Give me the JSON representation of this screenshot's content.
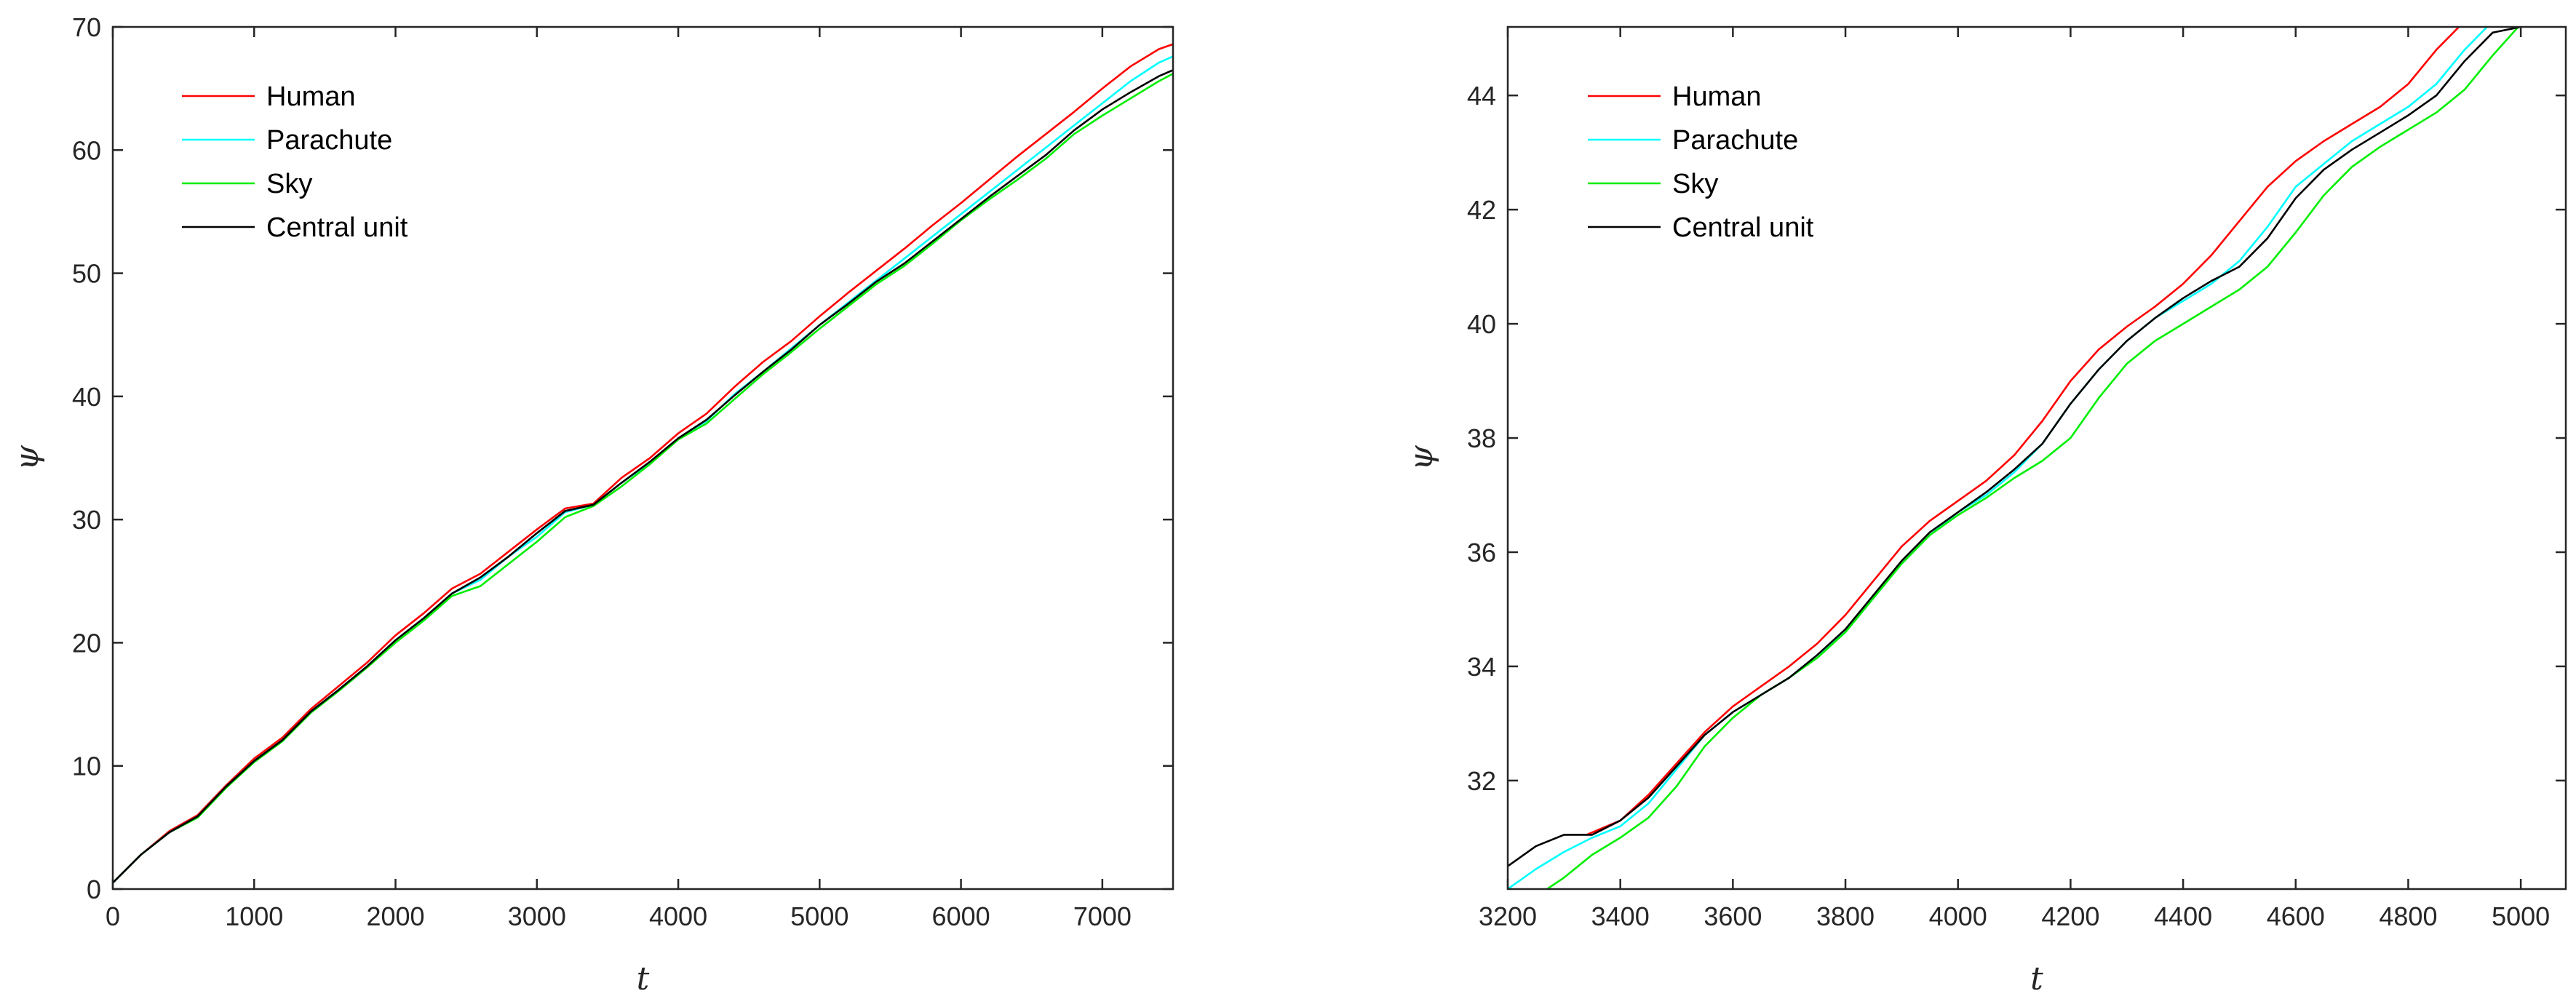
{
  "chart_data": [
    {
      "type": "line",
      "xlabel": "t",
      "ylabel": "ψ",
      "xlim": [
        0,
        7500
      ],
      "ylim": [
        0,
        70
      ],
      "xticks": [
        0,
        1000,
        2000,
        3000,
        4000,
        5000,
        6000,
        7000
      ],
      "yticks": [
        0,
        10,
        20,
        30,
        40,
        50,
        60,
        70
      ],
      "grid": false,
      "legend_position": "top-left",
      "series": [
        {
          "name": "Human",
          "color": "#ff0000",
          "x": [
            0,
            200,
            400,
            600,
            800,
            1000,
            1200,
            1400,
            1600,
            1800,
            2000,
            2200,
            2400,
            2600,
            2800,
            3000,
            3200,
            3400,
            3600,
            3800,
            4000,
            4200,
            4400,
            4600,
            4800,
            5000,
            5200,
            5400,
            5600,
            5800,
            6000,
            6200,
            6400,
            6600,
            6800,
            7000,
            7200,
            7400,
            7500
          ],
          "y": [
            0.5,
            2.8,
            4.7,
            6.0,
            8.4,
            10.6,
            12.3,
            14.6,
            16.5,
            18.4,
            20.6,
            22.4,
            24.4,
            25.6,
            27.4,
            29.2,
            30.9,
            31.3,
            33.4,
            35.0,
            37.0,
            38.6,
            40.8,
            42.8,
            44.5,
            46.5,
            48.4,
            50.2,
            52.0,
            53.9,
            55.7,
            57.6,
            59.5,
            61.3,
            63.1,
            65.0,
            66.8,
            68.2,
            68.6
          ]
        },
        {
          "name": "Parachute",
          "color": "#00ffff",
          "x": [
            0,
            200,
            400,
            600,
            800,
            1000,
            1200,
            1400,
            1600,
            1800,
            2000,
            2200,
            2400,
            2600,
            2800,
            3000,
            3200,
            3400,
            3600,
            3800,
            4000,
            4200,
            4400,
            4600,
            4800,
            5000,
            5200,
            5400,
            5600,
            5800,
            6000,
            6200,
            6400,
            6600,
            6800,
            7000,
            7200,
            7400,
            7500
          ],
          "y": [
            0.5,
            2.8,
            4.6,
            5.9,
            8.3,
            10.4,
            12.1,
            14.4,
            16.2,
            18.1,
            20.2,
            22.0,
            24.0,
            25.1,
            27.0,
            28.6,
            30.6,
            31.2,
            33.0,
            34.6,
            36.6,
            38.0,
            40.2,
            42.0,
            43.9,
            45.8,
            47.6,
            49.4,
            51.2,
            53.0,
            54.8,
            56.6,
            58.4,
            60.2,
            62.0,
            63.8,
            65.6,
            67.1,
            67.6
          ]
        },
        {
          "name": "Sky",
          "color": "#00ee00",
          "x": [
            0,
            200,
            400,
            600,
            800,
            1000,
            1200,
            1400,
            1600,
            1800,
            2000,
            2200,
            2400,
            2600,
            2800,
            3000,
            3200,
            3400,
            3600,
            3800,
            4000,
            4200,
            4400,
            4600,
            4800,
            5000,
            5200,
            5400,
            5600,
            5800,
            6000,
            6200,
            6400,
            6600,
            6800,
            7000,
            7200,
            7400,
            7500
          ],
          "y": [
            0.5,
            2.8,
            4.6,
            5.8,
            8.2,
            10.3,
            12.0,
            14.3,
            16.1,
            18.0,
            20.0,
            21.8,
            23.8,
            24.6,
            26.4,
            28.2,
            30.2,
            31.1,
            32.7,
            34.5,
            36.5,
            37.8,
            39.8,
            41.8,
            43.6,
            45.5,
            47.3,
            49.1,
            50.6,
            52.4,
            54.3,
            56.0,
            57.6,
            59.3,
            61.3,
            62.8,
            64.2,
            65.6,
            66.2
          ]
        },
        {
          "name": "Central unit",
          "color": "#000000",
          "x": [
            0,
            200,
            400,
            600,
            800,
            1000,
            1200,
            1400,
            1600,
            1800,
            2000,
            2200,
            2400,
            2600,
            2800,
            3000,
            3200,
            3400,
            3600,
            3800,
            4000,
            4200,
            4400,
            4600,
            4800,
            5000,
            5200,
            5400,
            5600,
            5800,
            6000,
            6200,
            6400,
            6600,
            6800,
            7000,
            7200,
            7400,
            7500
          ],
          "y": [
            0.5,
            2.8,
            4.6,
            5.9,
            8.3,
            10.4,
            12.1,
            14.4,
            16.2,
            18.1,
            20.2,
            22.0,
            24.0,
            25.3,
            27.0,
            28.9,
            30.7,
            31.2,
            33.0,
            34.7,
            36.6,
            38.1,
            40.1,
            42.0,
            43.8,
            45.8,
            47.5,
            49.3,
            50.8,
            52.6,
            54.4,
            56.2,
            57.9,
            59.6,
            61.6,
            63.3,
            64.7,
            66.0,
            66.5
          ]
        }
      ]
    },
    {
      "type": "line",
      "xlabel": "t",
      "ylabel": "ψ",
      "xlim": [
        3200,
        5080
      ],
      "ylim": [
        30.1,
        45.2
      ],
      "xticks": [
        3200,
        3400,
        3600,
        3800,
        4000,
        4200,
        4400,
        4600,
        4800,
        5000
      ],
      "yticks": [
        32,
        34,
        36,
        38,
        40,
        42,
        44
      ],
      "grid": false,
      "legend_position": "top-left",
      "series": [
        {
          "name": "Human",
          "color": "#ff0000",
          "x": [
            3340,
            3400,
            3450,
            3500,
            3550,
            3600,
            3650,
            3700,
            3750,
            3800,
            3850,
            3900,
            3950,
            4000,
            4050,
            4100,
            4150,
            4200,
            4250,
            4300,
            4350,
            4400,
            4450,
            4500,
            4550,
            4600,
            4650,
            4700,
            4750,
            4800,
            4850,
            4900
          ],
          "y": [
            31.05,
            31.3,
            31.75,
            32.3,
            32.85,
            33.3,
            33.65,
            34.0,
            34.4,
            34.9,
            35.5,
            36.1,
            36.55,
            36.9,
            37.25,
            37.7,
            38.3,
            39.0,
            39.55,
            39.95,
            40.3,
            40.7,
            41.2,
            41.8,
            42.4,
            42.85,
            43.2,
            43.5,
            43.8,
            44.2,
            44.8,
            45.3
          ]
        },
        {
          "name": "Parachute",
          "color": "#00ffff",
          "x": [
            3200,
            3250,
            3300,
            3350,
            3400,
            3450,
            3500,
            3550,
            3600,
            3650,
            3700,
            3750,
            3800,
            3850,
            3900,
            3950,
            4000,
            4050,
            4100,
            4150,
            4200,
            4250,
            4300,
            4350,
            4400,
            4450,
            4500,
            4550,
            4600,
            4650,
            4700,
            4750,
            4800,
            4850,
            4900,
            4950
          ],
          "y": [
            30.1,
            30.45,
            30.75,
            31.0,
            31.2,
            31.6,
            32.2,
            32.8,
            33.2,
            33.5,
            33.8,
            34.2,
            34.6,
            35.2,
            35.8,
            36.3,
            36.7,
            37.0,
            37.4,
            37.9,
            38.6,
            39.2,
            39.7,
            40.1,
            40.4,
            40.7,
            41.1,
            41.7,
            42.4,
            42.8,
            43.2,
            43.5,
            43.8,
            44.2,
            44.8,
            45.3
          ]
        },
        {
          "name": "Sky",
          "color": "#00ee00",
          "x": [
            3270,
            3300,
            3350,
            3400,
            3450,
            3500,
            3550,
            3600,
            3650,
            3700,
            3750,
            3800,
            3850,
            3900,
            3950,
            4000,
            4050,
            4100,
            4150,
            4200,
            4250,
            4300,
            4350,
            4400,
            4450,
            4500,
            4550,
            4600,
            4650,
            4700,
            4750,
            4800,
            4850,
            4900,
            4950,
            5000
          ],
          "y": [
            30.1,
            30.3,
            30.7,
            31.0,
            31.35,
            31.9,
            32.6,
            33.1,
            33.5,
            33.8,
            34.15,
            34.6,
            35.2,
            35.8,
            36.3,
            36.65,
            36.95,
            37.3,
            37.6,
            38.0,
            38.7,
            39.3,
            39.7,
            40.0,
            40.3,
            40.6,
            41.0,
            41.6,
            42.25,
            42.75,
            43.1,
            43.4,
            43.7,
            44.1,
            44.7,
            45.25
          ]
        },
        {
          "name": "Central unit",
          "color": "#000000",
          "x": [
            3200,
            3250,
            3300,
            3350,
            3400,
            3450,
            3500,
            3550,
            3600,
            3650,
            3700,
            3750,
            3800,
            3850,
            3900,
            3950,
            4000,
            4050,
            4100,
            4150,
            4200,
            4250,
            4300,
            4350,
            4400,
            4450,
            4500,
            4550,
            4600,
            4650,
            4700,
            4750,
            4800,
            4850,
            4900,
            4950,
            5000
          ],
          "y": [
            30.5,
            30.85,
            31.05,
            31.05,
            31.3,
            31.7,
            32.25,
            32.8,
            33.2,
            33.5,
            33.8,
            34.2,
            34.65,
            35.25,
            35.85,
            36.35,
            36.7,
            37.05,
            37.45,
            37.9,
            38.6,
            39.2,
            39.7,
            40.1,
            40.45,
            40.75,
            41.0,
            41.5,
            42.2,
            42.7,
            43.05,
            43.35,
            43.65,
            44.0,
            44.6,
            45.1,
            45.2
          ]
        }
      ]
    }
  ]
}
